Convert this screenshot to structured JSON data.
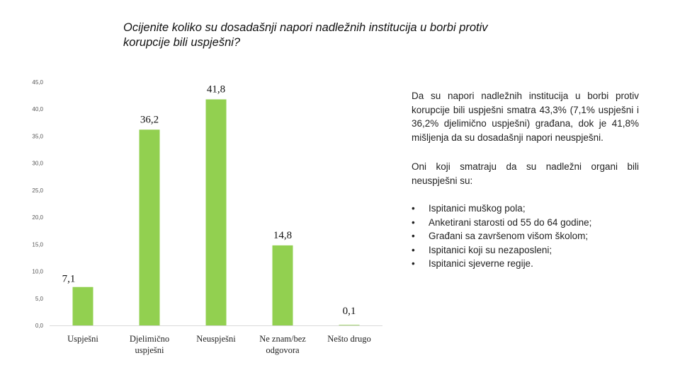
{
  "chart_data": {
    "type": "bar",
    "title": "Ocijenite koliko su dosadašnji napori nadležnih institucija u borbi protiv korupcije bili uspješni?",
    "categories": [
      "Uspješni",
      "Djelimično\nuspješni",
      "Neuspješni",
      "Ne znam/bez\nodgovora",
      "Nešto drugo"
    ],
    "values": [
      7.1,
      36.2,
      41.8,
      14.8,
      0.1
    ],
    "value_labels": [
      "7,1",
      "36,2",
      "41,8",
      "14,8",
      "0,1"
    ],
    "ylim": [
      0,
      45
    ],
    "yticks": [
      0,
      5,
      10,
      15,
      20,
      25,
      30,
      35,
      40,
      45
    ],
    "ytick_labels": [
      "0,0",
      "5,0",
      "10,0",
      "15,0",
      "20,0",
      "25,0",
      "30,0",
      "35,0",
      "40,0",
      "45,0"
    ],
    "bar_color": "#92d050",
    "grid": false,
    "xlabel": "",
    "ylabel": ""
  },
  "side_text": {
    "paragraph1": "Da su napori nadležnih institucija u borbi protiv korupcije bili uspješni smatra 43,3% (7,1% uspješni i 36,2% djelimično uspješni) građana, dok je 41,8% mišljenja da su dosadašnji napori neuspješni.",
    "paragraph2": "Oni koji smatraju da su nadležni organi bili neuspješni su:",
    "bullets": [
      "Ispitanici muškog pola;",
      "Anketirani starosti od 55 do 64 godine;",
      "Građani sa završenom višom školom;",
      "Ispitanici koji su nezaposleni;",
      "Ispitanici sjeverne regije."
    ]
  }
}
